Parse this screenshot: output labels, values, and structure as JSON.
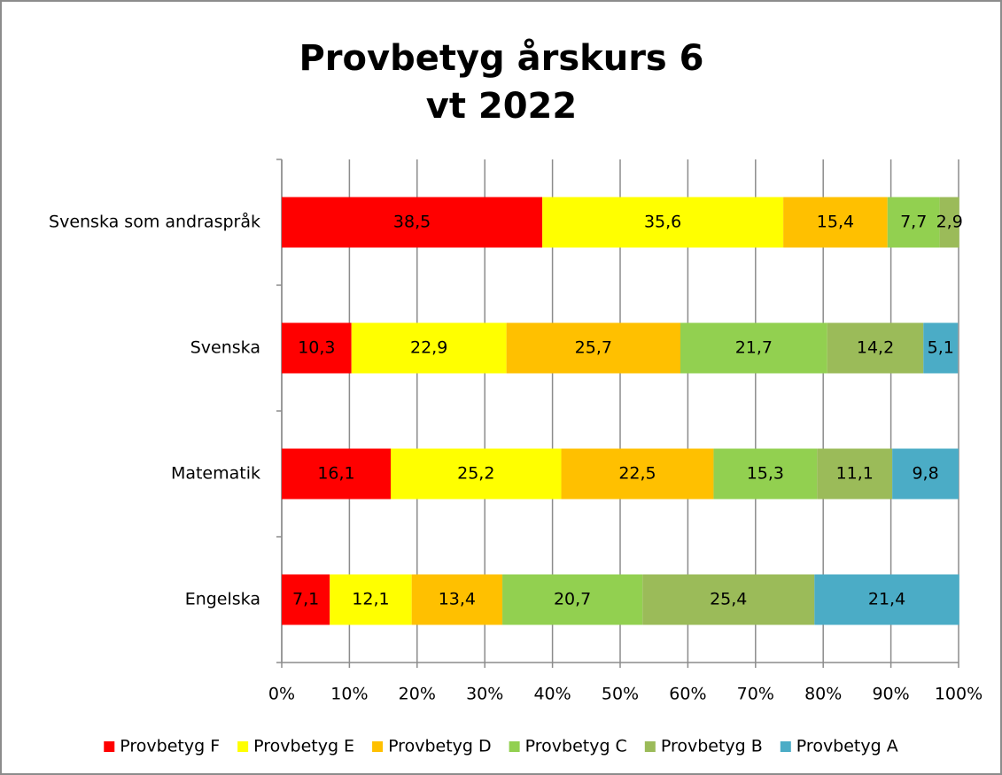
{
  "chart_data": {
    "type": "stacked-barh",
    "title": [
      "Provbetyg årskurs 6",
      "vt 2022"
    ],
    "categories": [
      "Svenska som andraspråk",
      "Svenska",
      "Matematik",
      "Engelska"
    ],
    "series": [
      {
        "name": "Provbetyg F",
        "color": "#ff0000",
        "values": [
          38.5,
          10.3,
          16.1,
          7.1
        ],
        "value_labels": [
          "38,5",
          "10,3",
          "16,1",
          "7,1"
        ]
      },
      {
        "name": "Provbetyg E",
        "color": "#ffff00",
        "values": [
          35.6,
          22.9,
          25.2,
          12.1
        ],
        "value_labels": [
          "35,6",
          "22,9",
          "25,2",
          "12,1"
        ]
      },
      {
        "name": "Provbetyg D",
        "color": "#ffc000",
        "values": [
          15.4,
          25.7,
          22.5,
          13.4
        ],
        "value_labels": [
          "15,4",
          "25,7",
          "22,5",
          "13,4"
        ]
      },
      {
        "name": "Provbetyg C",
        "color": "#92d050",
        "values": [
          7.7,
          21.7,
          15.3,
          20.7
        ],
        "value_labels": [
          "7,7",
          "21,7",
          "15,3",
          "20,7"
        ]
      },
      {
        "name": "Provbetyg B",
        "color": "#9bbb59",
        "values": [
          2.9,
          14.2,
          11.1,
          25.4
        ],
        "value_labels": [
          "2,9",
          "14,2",
          "11,1",
          "25,4"
        ]
      },
      {
        "name": "Provbetyg A",
        "color": "#4bacc6",
        "values": [
          null,
          5.1,
          9.8,
          21.4
        ],
        "value_labels": [
          null,
          "5,1",
          "9,8",
          "21,4"
        ]
      }
    ],
    "xlim": [
      0,
      100
    ],
    "xticks": [
      {
        "value": 0,
        "label": "0%"
      },
      {
        "value": 10,
        "label": "10%"
      },
      {
        "value": 20,
        "label": "20%"
      },
      {
        "value": 30,
        "label": "30%"
      },
      {
        "value": 40,
        "label": "40%"
      },
      {
        "value": 50,
        "label": "50%"
      },
      {
        "value": 60,
        "label": "60%"
      },
      {
        "value": 70,
        "label": "70%"
      },
      {
        "value": 80,
        "label": "80%"
      },
      {
        "value": 90,
        "label": "90%"
      },
      {
        "value": 100,
        "label": "100%"
      }
    ],
    "grid": true,
    "legend": "bottom"
  }
}
